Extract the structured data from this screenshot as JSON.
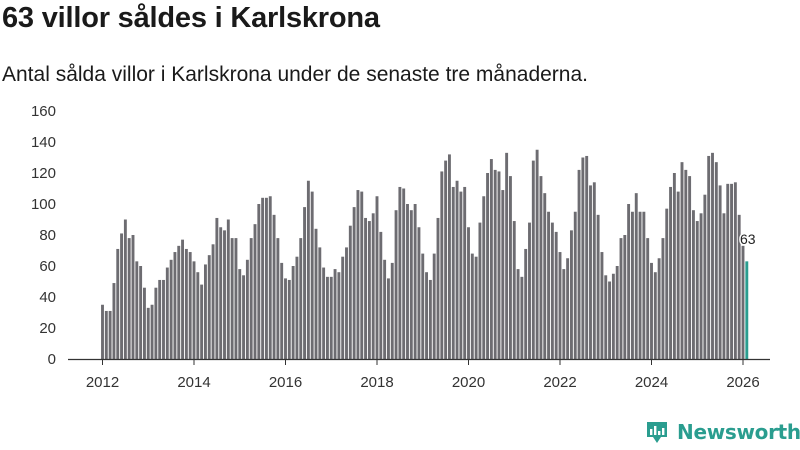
{
  "header": {
    "title": "63 villor såldes i Karlskrona",
    "subtitle": "Antal sålda villor i Karlskrona under de senaste tre månaderna."
  },
  "branding": {
    "name": "Newsworthy"
  },
  "colors": {
    "bar": "#6d6c71",
    "highlight": "#2a9d8f",
    "axis": "#333333"
  },
  "chart_data": {
    "type": "bar",
    "title": "63 villor såldes i Karlskrona",
    "subtitle": "Antal sålda villor i Karlskrona under de senaste tre månaderna.",
    "xlabel": "",
    "ylabel": "",
    "ylim": [
      0,
      160
    ],
    "yticks": [
      0,
      20,
      40,
      60,
      80,
      100,
      120,
      140,
      160
    ],
    "xticks": [
      "2012",
      "2014",
      "2016",
      "2018",
      "2020",
      "2022",
      "2024",
      "2026"
    ],
    "grid": false,
    "start": "2012-01",
    "frequency": "monthly",
    "highlight_last": true,
    "last_label": "63",
    "values": [
      35,
      31,
      31,
      49,
      71,
      81,
      90,
      78,
      80,
      63,
      60,
      46,
      33,
      35,
      46,
      51,
      51,
      59,
      64,
      69,
      73,
      77,
      71,
      69,
      63,
      56,
      48,
      61,
      67,
      74,
      91,
      85,
      83,
      90,
      78,
      78,
      58,
      54,
      64,
      78,
      87,
      100,
      104,
      104,
      105,
      93,
      78,
      62,
      52,
      51,
      60,
      66,
      78,
      98,
      115,
      108,
      84,
      72,
      59,
      53,
      53,
      58,
      56,
      66,
      72,
      86,
      98,
      109,
      108,
      91,
      89,
      94,
      105,
      82,
      64,
      52,
      62,
      96,
      111,
      110,
      100,
      96,
      100,
      85,
      68,
      56,
      51,
      68,
      91,
      121,
      128,
      132,
      111,
      115,
      108,
      111,
      85,
      68,
      66,
      88,
      105,
      120,
      129,
      122,
      121,
      109,
      133,
      118,
      89,
      58,
      53,
      71,
      88,
      128,
      135,
      118,
      107,
      95,
      88,
      82,
      69,
      58,
      65,
      83,
      95,
      122,
      130,
      131,
      112,
      114,
      93,
      69,
      54,
      50,
      55,
      60,
      78,
      80,
      100,
      95,
      107,
      95,
      95,
      78,
      62,
      56,
      65,
      78,
      97,
      111,
      120,
      108,
      127,
      122,
      118,
      96,
      89,
      94,
      106,
      131,
      133,
      127,
      112,
      94,
      113,
      113,
      114,
      93,
      73,
      63
    ]
  }
}
